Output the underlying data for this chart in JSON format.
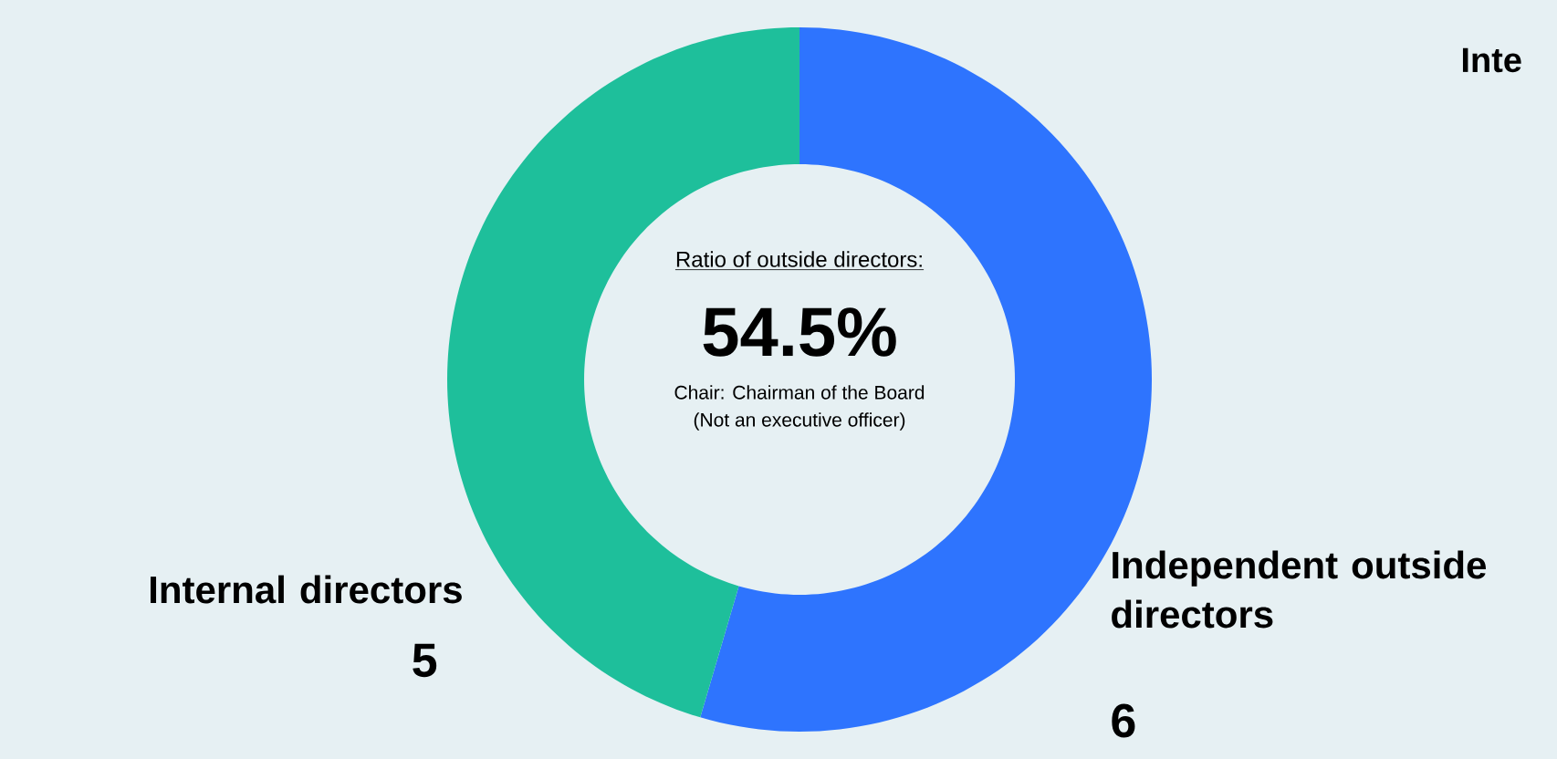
{
  "chart_data": {
    "type": "donut",
    "title": "Ratio of outside directors:",
    "categories": [
      "Independent outside directors",
      "Internal directors"
    ],
    "values": [
      6,
      5
    ],
    "colors": [
      "#2e74fe",
      "#1ebf9b"
    ],
    "data_labels": true,
    "annotations": [
      "54.5%",
      "Chair: Chairman of the Board",
      "(Not an executive officer)",
      "Inte"
    ]
  }
}
